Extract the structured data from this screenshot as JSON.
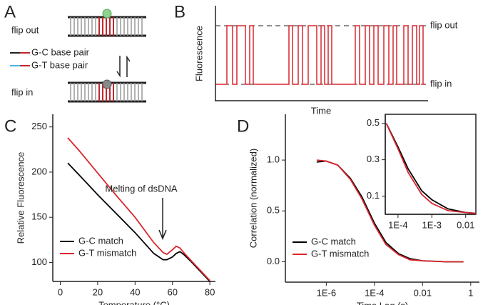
{
  "panel_a": {
    "label": "A",
    "flip_out": "flip out",
    "flip_in": "flip in",
    "legend": [
      "G-C base pair",
      "G-T base pair"
    ]
  },
  "panel_b": {
    "label": "B",
    "ylabel": "Fluorescence",
    "xlabel": "Time",
    "levels": [
      "flip out",
      "flip in"
    ]
  },
  "chart_data": [
    {
      "type": "line",
      "panel": "C",
      "xlabel": "Temperature (°C)",
      "ylabel": "Relative Fluorescence",
      "annotation": "Melting of dsDNA",
      "x": [
        4,
        10,
        20,
        30,
        40,
        50,
        55,
        57,
        60,
        62,
        64,
        66,
        70,
        75,
        80
      ],
      "series": [
        {
          "name": "G-C match",
          "color": "#000000",
          "values": [
            210,
            197,
            175,
            154,
            133,
            110,
            103,
            103,
            106,
            110,
            112,
            109,
            101,
            90,
            79
          ]
        },
        {
          "name": "G-T mismatch",
          "color": "#d9262e",
          "values": [
            238,
            224,
            199,
            174,
            150,
            122,
            111,
            109,
            114,
            118,
            116,
            111,
            102,
            91,
            80
          ]
        }
      ],
      "xlim": [
        -4,
        83
      ],
      "ylim": [
        79,
        264
      ],
      "xticks": [
        0,
        20,
        40,
        60,
        80
      ],
      "yticks": [
        100,
        150,
        200,
        250
      ],
      "legend": "lower left"
    },
    {
      "type": "line",
      "panel": "D",
      "xlabel": "Time Lag (s)",
      "ylabel": "Correlation (normalized)",
      "xscale": "log",
      "x": [
        4e-07,
        1e-06,
        3e-06,
        1e-05,
        3e-05,
        0.0001,
        0.0003,
        0.001,
        0.003,
        0.01,
        0.1,
        0.5
      ],
      "series": [
        {
          "name": "G-C match",
          "color": "#000000",
          "values": [
            0.98,
            0.99,
            0.95,
            0.82,
            0.64,
            0.38,
            0.19,
            0.08,
            0.03,
            0.01,
            0,
            0
          ]
        },
        {
          "name": "G-T mismatch",
          "color": "#d9262e",
          "values": [
            1.0,
            0.99,
            0.95,
            0.81,
            0.62,
            0.36,
            0.17,
            0.07,
            0.02,
            0.01,
            0,
            0
          ]
        }
      ],
      "xlim": [
        2e-08,
        2.3
      ],
      "ylim": [
        -0.2,
        1.45
      ],
      "xticks": [
        {
          "value": 1e-06,
          "label": "1E-6"
        },
        {
          "value": 0.0001,
          "label": "1E-4"
        },
        0.01,
        1
      ],
      "yticks": [
        {
          "value": 0,
          "label": "0.0"
        },
        0.5,
        {
          "value": 1,
          "label": "1.0"
        }
      ],
      "legend": "lower left"
    },
    {
      "type": "line",
      "xscale": "log",
      "x": [
        4.5e-05,
        0.0001,
        0.0002,
        0.0005,
        0.001,
        0.003,
        0.01,
        0.02
      ],
      "series": [
        {
          "color": "#000000",
          "values": [
            0.5,
            0.37,
            0.25,
            0.13,
            0.08,
            0.03,
            0.01,
            0.005
          ]
        },
        {
          "color": "#d9262e",
          "values": [
            0.5,
            0.36,
            0.23,
            0.11,
            0.06,
            0.02,
            0.01,
            0.005
          ]
        }
      ],
      "xlim": [
        4.2e-05,
        0.02
      ],
      "ylim": [
        0,
        0.55
      ],
      "xticks": [
        {
          "value": 0.0001,
          "label": "1E-4"
        },
        {
          "value": 0.001,
          "label": "1E-3"
        },
        0.01
      ],
      "yticks": [
        0.1,
        0.3,
        0.5
      ]
    }
  ]
}
